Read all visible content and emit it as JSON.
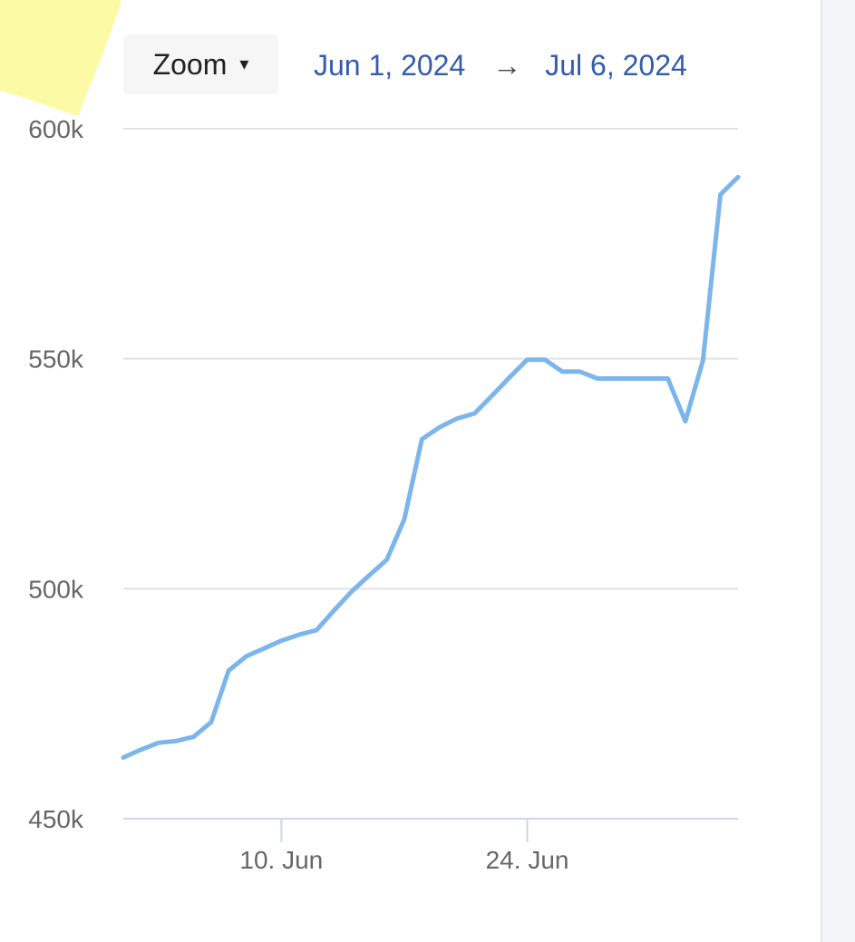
{
  "toolbar": {
    "zoom_label": "Zoom",
    "caret_icon": "▾",
    "range_start": "Jun 1, 2024",
    "range_arrow": "→",
    "range_end": "Jul 6, 2024"
  },
  "colors": {
    "series": "#7cb5ec",
    "range_text": "#335cad",
    "highlight": "#fdfaa6"
  },
  "chart_data": {
    "type": "line",
    "title": "",
    "xlabel": "",
    "ylabel": "",
    "x_start": "2024-06-01",
    "x_end": "2024-07-06",
    "xlim": [
      "2024-06-01",
      "2024-07-06"
    ],
    "ylim": [
      450000,
      600000
    ],
    "grid": true,
    "legend": "none",
    "y_ticks": [
      {
        "value": 450000,
        "label": "450k"
      },
      {
        "value": 500000,
        "label": "500k"
      },
      {
        "value": 550000,
        "label": "550k"
      },
      {
        "value": 600000,
        "label": "600k"
      }
    ],
    "x_ticks": [
      {
        "date": "2024-06-10",
        "label": "10. Jun"
      },
      {
        "date": "2024-06-24",
        "label": "24. Jun"
      }
    ],
    "series": [
      {
        "color": "#7cb5ec",
        "x": [
          "2024-06-01",
          "2024-06-02",
          "2024-06-03",
          "2024-06-04",
          "2024-06-05",
          "2024-06-06",
          "2024-06-07",
          "2024-06-08",
          "2024-06-09",
          "2024-06-10",
          "2024-06-11",
          "2024-06-12",
          "2024-06-13",
          "2024-06-14",
          "2024-06-15",
          "2024-06-16",
          "2024-06-17",
          "2024-06-18",
          "2024-06-19",
          "2024-06-20",
          "2024-06-21",
          "2024-06-22",
          "2024-06-23",
          "2024-06-24",
          "2024-06-25",
          "2024-06-26",
          "2024-06-27",
          "2024-06-28",
          "2024-06-29",
          "2024-06-30",
          "2024-07-01",
          "2024-07-02",
          "2024-07-03",
          "2024-07-04",
          "2024-07-05",
          "2024-07-06"
        ],
        "values": [
          463300,
          465000,
          466500,
          466900,
          467800,
          471000,
          482200,
          485300,
          487000,
          488700,
          490000,
          491000,
          495300,
          499400,
          502900,
          506300,
          515100,
          532500,
          535100,
          537000,
          538100,
          542000,
          546000,
          549800,
          549800,
          547200,
          547200,
          545700,
          545700,
          545700,
          545700,
          545700,
          536400,
          549600,
          585700,
          589500
        ]
      }
    ]
  }
}
